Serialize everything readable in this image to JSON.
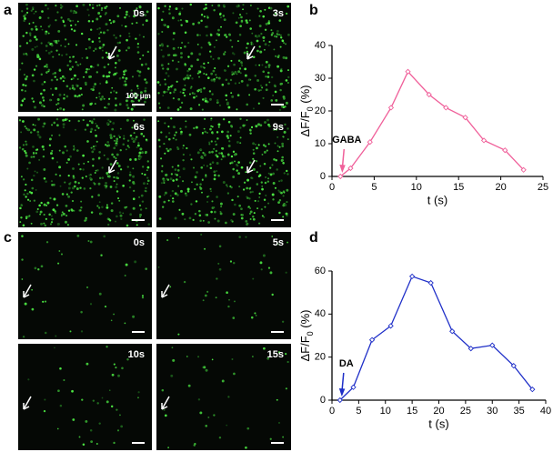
{
  "panels": [
    {
      "letter": "a",
      "frames": [
        "0s",
        "3s",
        "6s",
        "9s"
      ],
      "scale_label": "100 μm"
    },
    {
      "letter": "c",
      "frames": [
        "0s",
        "5s",
        "10s",
        "15s"
      ]
    }
  ],
  "chart_data": [
    {
      "type": "line",
      "panel": "b",
      "annotation": "GABA",
      "xlabel": "t (s)",
      "ylabel": [
        "ΔF/F",
        "0",
        " (%)"
      ],
      "x": [
        1,
        2.2,
        4.5,
        7,
        9,
        11.5,
        13.5,
        15.8,
        18,
        20.5,
        22.7
      ],
      "values": [
        0,
        2.5,
        10.5,
        21,
        32,
        25,
        21,
        18,
        11,
        8,
        2
      ],
      "color": "#f0609a",
      "xlim": [
        0,
        25
      ],
      "xticks": [
        0,
        5,
        10,
        15,
        20,
        25
      ],
      "ylim": [
        0,
        40
      ],
      "yticks": [
        0,
        10,
        20,
        30,
        40
      ]
    },
    {
      "type": "line",
      "panel": "d",
      "annotation": "DA",
      "xlabel": "t (s)",
      "ylabel": [
        "ΔF/F",
        "0",
        " (%)"
      ],
      "x": [
        1.5,
        4,
        7.5,
        11,
        15,
        18.5,
        22.5,
        26,
        30,
        34,
        37.5
      ],
      "values": [
        0,
        6,
        28,
        34.5,
        57.5,
        54.5,
        32,
        24,
        25.5,
        16,
        5
      ],
      "color": "#1f2fc8",
      "xlim": [
        0,
        40
      ],
      "xticks": [
        0,
        5,
        10,
        15,
        20,
        25,
        30,
        35,
        40
      ],
      "ylim": [
        0,
        60
      ],
      "yticks": [
        0,
        20,
        40,
        60
      ]
    }
  ]
}
